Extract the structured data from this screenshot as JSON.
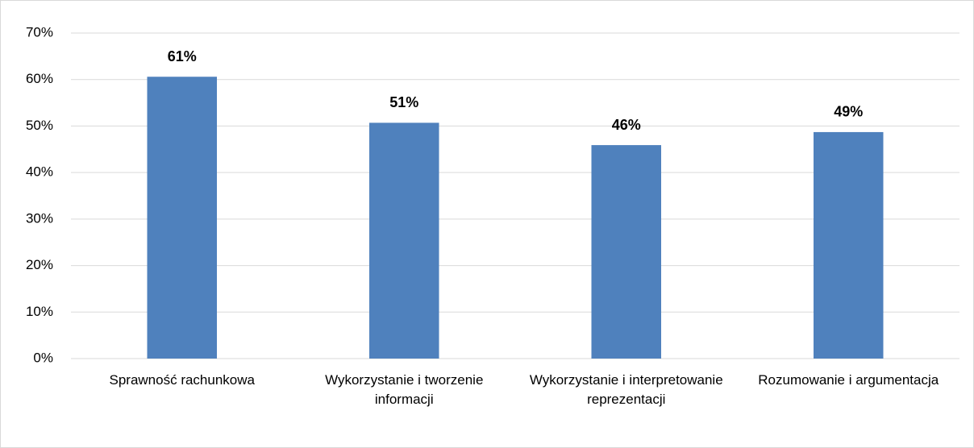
{
  "chart_data": {
    "type": "bar",
    "categories": [
      "Sprawność rachunkowa",
      "Wykorzystanie i tworzenie informacji",
      "Wykorzystanie i interpretowanie reprezentacji",
      "Rozumowanie i argumentacja"
    ],
    "values": [
      60.6,
      50.7,
      45.9,
      48.7
    ],
    "value_labels": [
      "61%",
      "51%",
      "46%",
      "49%"
    ],
    "color": "#4f81bd",
    "ylim": [
      0,
      70
    ],
    "yticks": [
      {
        "value": 0,
        "label": "0%"
      },
      {
        "value": 10,
        "label": "10%"
      },
      {
        "value": 20,
        "label": "20%"
      },
      {
        "value": 30,
        "label": "30%"
      },
      {
        "value": 40,
        "label": "40%"
      },
      {
        "value": 50,
        "label": "50%"
      },
      {
        "value": 60,
        "label": "60%"
      },
      {
        "value": 70,
        "label": "70%"
      }
    ],
    "grid": true
  }
}
